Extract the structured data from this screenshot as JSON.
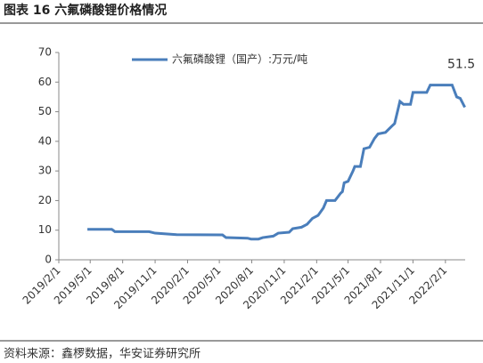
{
  "header": {
    "title": "图表 16  六氟磷酸锂价格情况"
  },
  "chart_data": {
    "type": "line",
    "xlim": [
      "2019/2/1",
      "2022/3/29"
    ],
    "xticks": [
      "2019/2/1",
      "2019/5/1",
      "2019/8/1",
      "2019/11/1",
      "2020/2/1",
      "2020/5/1",
      "2020/8/1",
      "2020/11/1",
      "2021/2/1",
      "2021/5/1",
      "2021/8/1",
      "2021/11/1",
      "2022/2/1"
    ],
    "ylim": [
      0,
      70
    ],
    "yticks": [
      0,
      10,
      20,
      30,
      40,
      50,
      60,
      70
    ],
    "x": [
      "2019/4/23",
      "2019/7/1",
      "2019/7/10",
      "2019/10/15",
      "2019/11/1",
      "2020/1/1",
      "2020/5/10",
      "2020/5/20",
      "2020/7/20",
      "2020/7/30",
      "2020/8/20",
      "2020/9/1",
      "2020/10/1",
      "2020/10/15",
      "2020/11/15",
      "2020/11/25",
      "2020/12/20",
      "2021/1/5",
      "2021/1/20",
      "2021/2/5",
      "2021/2/20",
      "2021/3/1",
      "2021/3/25",
      "2021/4/10",
      "2021/4/15",
      "2021/4/20",
      "2021/5/1",
      "2021/5/15",
      "2021/5/20",
      "2021/6/5",
      "2021/6/15",
      "2021/7/1",
      "2021/7/15",
      "2021/7/25",
      "2021/8/15",
      "2021/9/1",
      "2021/9/10",
      "2021/9/25",
      "2021/10/5",
      "2021/10/25",
      "2021/11/1",
      "2021/12/10",
      "2021/12/20",
      "2022/2/20",
      "2022/3/5",
      "2022/3/15",
      "2022/3/28"
    ],
    "series": [
      {
        "name": "六氟磷酸锂（国产）:万元/吨",
        "color": "#4a7ebb",
        "values": [
          10.3,
          10.3,
          9.5,
          9.5,
          9,
          8.5,
          8.4,
          7.5,
          7.3,
          7,
          7,
          7.5,
          8,
          9,
          9.3,
          10.5,
          11,
          12,
          14,
          15,
          17.5,
          20,
          20,
          22.5,
          23,
          26,
          26.5,
          30,
          31.5,
          31.5,
          37.5,
          38,
          41,
          42.5,
          43,
          45,
          46,
          53.5,
          52.5,
          52.5,
          56.5,
          56.5,
          59,
          59,
          55,
          54.5,
          51.5
        ]
      }
    ]
  },
  "footer": {
    "source": "资料来源：鑫椤数据，华安证券研究所"
  }
}
